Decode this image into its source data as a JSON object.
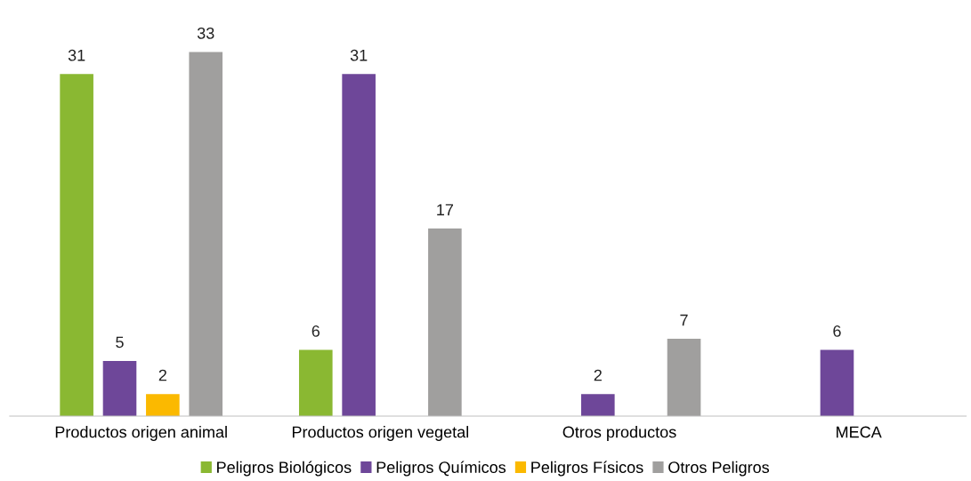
{
  "chart_data": {
    "type": "bar",
    "categories": [
      "Productos origen animal",
      "Productos origen vegetal",
      "Otros productos",
      "MECA"
    ],
    "series": [
      {
        "name": "Peligros Biológicos",
        "color": "#8ab832",
        "values": [
          31,
          6,
          null,
          null
        ]
      },
      {
        "name": "Peligros Químicos",
        "color": "#6e4799",
        "values": [
          5,
          31,
          2,
          6
        ]
      },
      {
        "name": "Peligros Físicos",
        "color": "#fbb900",
        "values": [
          2,
          null,
          null,
          null
        ]
      },
      {
        "name": "Otros Peligros",
        "color": "#a09f9e",
        "values": [
          33,
          17,
          7,
          null
        ]
      }
    ],
    "data_labels": true,
    "legend": "bottom",
    "grid": false,
    "tick_labels": "x"
  }
}
